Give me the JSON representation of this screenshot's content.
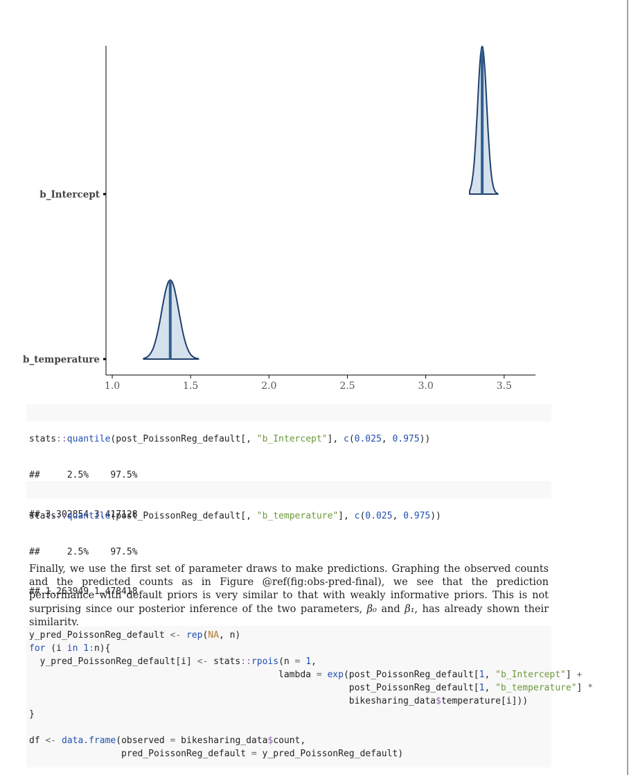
{
  "chart_data": {
    "type": "density",
    "categories": [
      "b_Intercept",
      "b_temperature"
    ],
    "series": [
      {
        "category": "b_Intercept",
        "median": 3.36,
        "lower": 3.302854,
        "upper": 3.417128,
        "min": 3.28,
        "max": 3.46
      },
      {
        "category": "b_temperature",
        "median": 1.37,
        "lower": 1.263949,
        "upper": 1.478418,
        "min": 1.2,
        "max": 1.55
      }
    ],
    "xlim": [
      0.96,
      3.7
    ],
    "xticks": [
      "1.0",
      "1.5",
      "2.0",
      "2.5",
      "3.0",
      "3.5"
    ],
    "xtick_values": [
      1.0,
      1.5,
      2.0,
      2.5,
      3.0,
      3.5
    ],
    "colors": {
      "fill": "#d5e1ed",
      "line": "#1f3f6a",
      "median": "#2f5f93"
    }
  },
  "code1": "stats::quantile(post_PoissonReg_default[, \"b_Intercept\"], c(0.025, 0.975))",
  "out1": [
    "##     2.5%    97.5% ",
    "## 3.302854 3.417128 "
  ],
  "code2": "stats::quantile(post_PoissonReg_default[, \"b_temperature\"], c(0.025, 0.975))",
  "out2": [
    "##     2.5%    97.5% ",
    "## 1.263949 1.478418 "
  ],
  "prose": {
    "part1": "Finally, we use the first set of parameter draws to make predictions. Graphing the observed counts and the predicted counts as in Figure @ref(fig:obs-pred-final), we see that the prediction performance with default priors is very similar to that with weakly informative priors.  This is not surprising since our posterior inference of the two parameters, ",
    "beta0": "β₀",
    "and": " and ",
    "beta1": "β₁",
    "part2": ", has already shown their similarity."
  },
  "code3": [
    "y_pred_PoissonReg_default <- rep(NA, n)",
    "for (i in 1:n){",
    "  y_pred_PoissonReg_default[i] <- stats::rpois(n = 1,",
    "                                              lambda = exp(post_PoissonReg_default[1, \"b_Intercept\"] +",
    "                                                           post_PoissonReg_default[1, \"b_temperature\"] *",
    "                                                           bikesharing_data$temperature[i]))",
    "}",
    "",
    "df <- data.frame(observed = bikesharing_data$count,",
    "                 pred_PoissonReg_default = y_pred_PoissonReg_default)"
  ]
}
